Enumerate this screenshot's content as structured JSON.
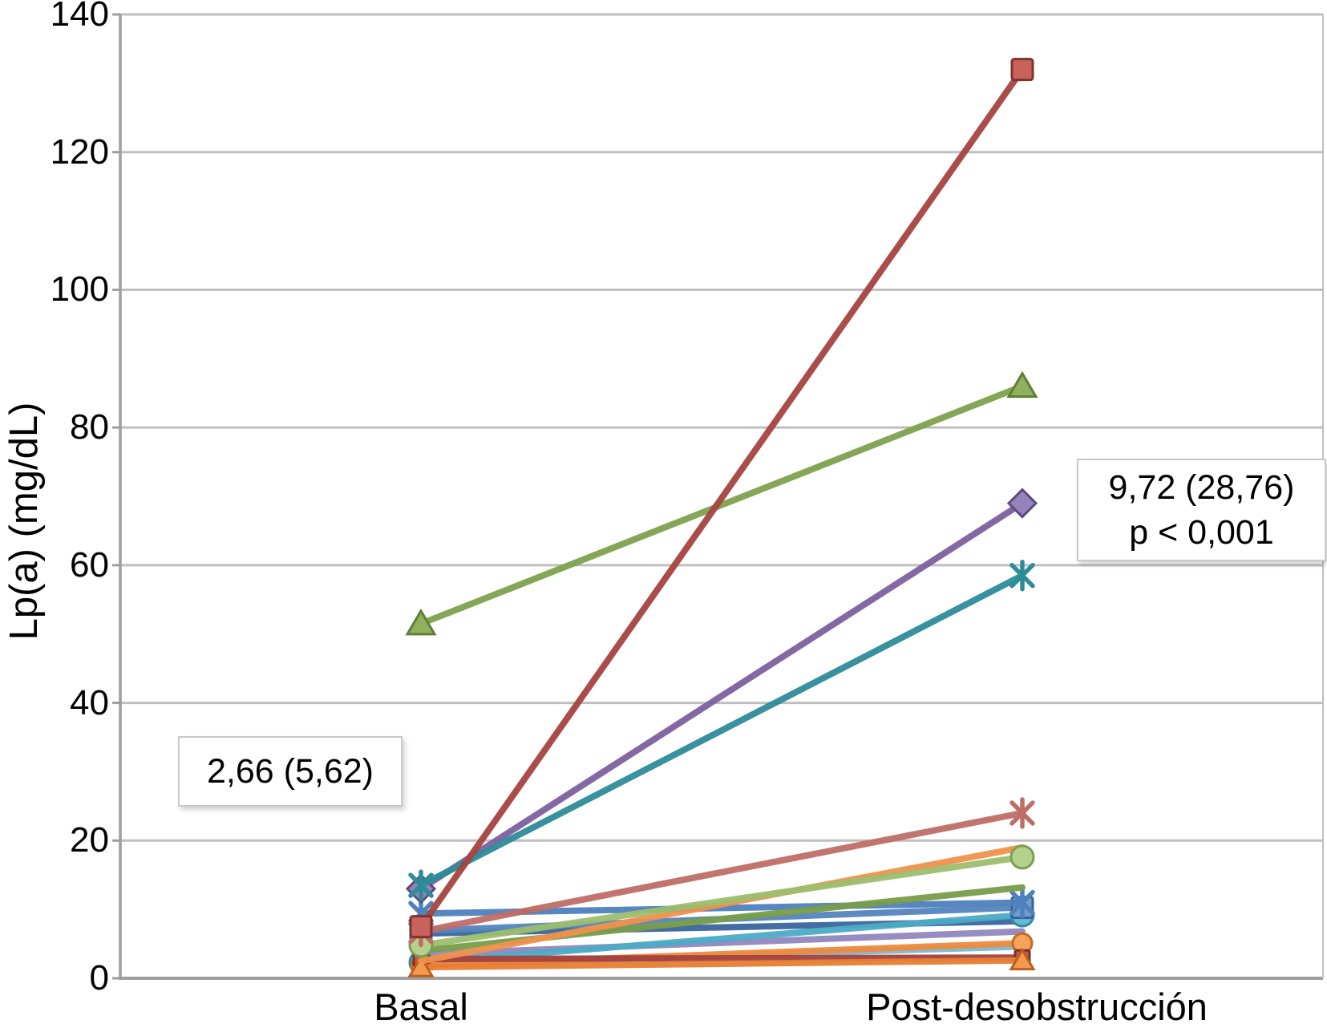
{
  "chart_data": {
    "type": "line",
    "subtype": "paired-slope-chart",
    "title": "",
    "xlabel": "",
    "ylabel": "Lp(a) (mg/dL)",
    "categories": [
      "Basal",
      "Post-desobstrucción"
    ],
    "ylim": [
      0,
      140
    ],
    "yticks": [
      0,
      20,
      40,
      60,
      80,
      100,
      120,
      140
    ],
    "grid": true,
    "legend": "none",
    "annotations": [
      {
        "text": "2,66 (5,62)",
        "anchor": "basal-median"
      },
      {
        "line1": "9,72 (28,76)",
        "line2": "p < 0,001",
        "anchor": "post-median"
      }
    ],
    "series": [
      {
        "name": "patient-sky-blue",
        "marker": "none",
        "color": "#7ABAD3",
        "fill": "#7ABAD3",
        "dark": "#5A9CB8",
        "values": [
          2.0,
          4.6
        ]
      },
      {
        "name": "patient-lavender",
        "marker": "none",
        "color": "#9387BF",
        "fill": "#9387BF",
        "dark": "#71639F",
        "values": [
          3.5,
          6.8
        ]
      },
      {
        "name": "patient-dark-blue",
        "marker": "none",
        "color": "#3A66A0",
        "fill": "#3A66A0",
        "dark": "#2A4F80",
        "values": [
          6.5,
          8.3
        ]
      },
      {
        "name": "patient-cyan",
        "marker": "circle",
        "color": "#4BACC6",
        "fill": "#68BBD2",
        "dark": "#2F8CA8",
        "values": [
          2.3,
          9.2
        ]
      },
      {
        "name": "patient-steel-square",
        "marker": "square",
        "color": "#5585BE",
        "fill": "#739BCC",
        "dark": "#38609B",
        "values": [
          6.9,
          10.3
        ]
      },
      {
        "name": "patient-steel-star",
        "marker": "star",
        "color": "#4F81BD",
        "fill": "#4F81BD",
        "dark": "#38609B",
        "values": [
          9.4,
          11.0
        ]
      },
      {
        "name": "patient-olive-2",
        "marker": "none",
        "color": "#799E49",
        "fill": "#799E49",
        "dark": "#5C7D33",
        "values": [
          4.0,
          13.2
        ]
      },
      {
        "name": "patient-orange-circle",
        "marker": "circle-sm",
        "color": "#EE8B3E",
        "fill": "#F5A25C",
        "dark": "#C66A24",
        "values": [
          1.9,
          5.1
        ]
      },
      {
        "name": "patient-dark-red-flat",
        "marker": "square-sm",
        "color": "#A5413E",
        "fill": "#BC5A54",
        "dark": "#7E2F2C",
        "values": [
          2.8,
          3.0
        ]
      },
      {
        "name": "patient-orange-tri",
        "marker": "triangle-sm",
        "color": "#E77F33",
        "fill": "#F29A50",
        "dark": "#BC5F1D",
        "values": [
          1.6,
          2.6
        ]
      },
      {
        "name": "patient-orange-rise",
        "marker": "none",
        "color": "#F0924C",
        "fill": "#F0924C",
        "dark": "#C66A24",
        "values": [
          2.5,
          19.0
        ]
      },
      {
        "name": "patient-light-green",
        "marker": "circle",
        "color": "#9CBE6E",
        "fill": "#B5D18D",
        "dark": "#7C9F52",
        "values": [
          4.8,
          17.6
        ]
      },
      {
        "name": "patient-salmon",
        "marker": "star",
        "color": "#BE6E67",
        "fill": "#BE6E67",
        "dark": "#96504A",
        "values": [
          6.8,
          24.0
        ]
      },
      {
        "name": "patient-purple",
        "marker": "diamond",
        "color": "#7D62A0",
        "fill": "#9583BC",
        "dark": "#5C4A80",
        "values": [
          13.0,
          69.0
        ]
      },
      {
        "name": "patient-teal",
        "marker": "star",
        "color": "#2E8C99",
        "fill": "#2E8C99",
        "dark": "#1F6B77",
        "values": [
          13.5,
          58.5
        ]
      },
      {
        "name": "patient-green",
        "marker": "triangle",
        "color": "#7FA24E",
        "fill": "#8FB05C",
        "dark": "#5F7F38",
        "values": [
          51.5,
          86.0
        ]
      },
      {
        "name": "patient-red",
        "marker": "square",
        "color": "#A64441",
        "fill": "#C9625B",
        "dark": "#7E332F",
        "values": [
          7.5,
          132.0
        ]
      }
    ],
    "style": {
      "grid_color": "#BFBFBF",
      "axis_color": "#9E9E9E",
      "line_width": 8
    }
  }
}
